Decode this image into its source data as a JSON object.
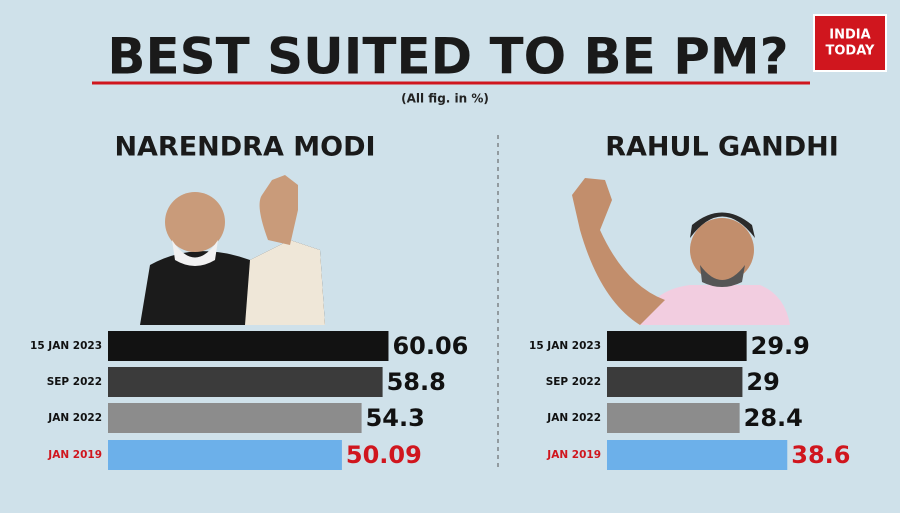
{
  "title": "BEST SUITED TO BE PM?",
  "subtitle": "(All fig. in %)",
  "logo": [
    "INDIA",
    "TODAY"
  ],
  "chart_data": [
    {
      "type": "bar",
      "orientation": "horizontal",
      "title": "NARENDRA MODI",
      "categories": [
        "15 JAN 2023",
        "SEP 2022",
        "JAN 2022",
        "JAN 2019"
      ],
      "values": [
        60.06,
        58.8,
        54.3,
        50.09
      ],
      "colors": [
        "#121212",
        "#3b3b3b",
        "#8c8c8c",
        "#6cb0ea"
      ],
      "text_colors": [
        "#111111",
        "#111111",
        "#111111",
        "#d0161e"
      ]
    },
    {
      "type": "bar",
      "orientation": "horizontal",
      "title": "RAHUL GANDHI",
      "categories": [
        "15 JAN 2023",
        "SEP 2022",
        "JAN 2022",
        "JAN 2019"
      ],
      "values": [
        29.9,
        29,
        28.4,
        38.6
      ],
      "colors": [
        "#121212",
        "#3b3b3b",
        "#8c8c8c",
        "#6cb0ea"
      ],
      "text_colors": [
        "#111111",
        "#111111",
        "#111111",
        "#d0161e"
      ]
    }
  ]
}
